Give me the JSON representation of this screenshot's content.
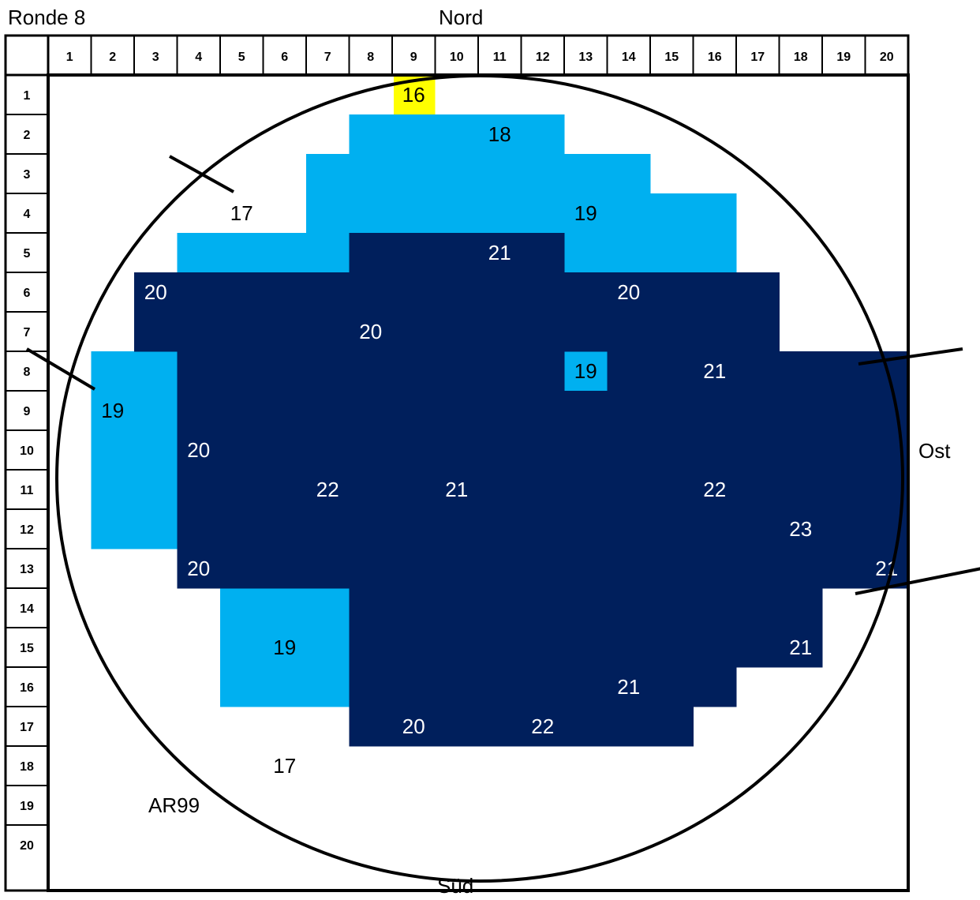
{
  "round_label": "Ronde 8",
  "compass": {
    "north": "Nord",
    "east": "Ost",
    "south": "Süd"
  },
  "marker": "AR99",
  "colors": {
    "dark": "#001f5c",
    "light": "#00b0f0",
    "highlight": "#ffff00",
    "marker": "#ff0000",
    "grid": "#000000"
  },
  "grid": {
    "columns": [
      "1",
      "2",
      "3",
      "4",
      "5",
      "6",
      "7",
      "8",
      "9",
      "10",
      "11",
      "12",
      "13",
      "14",
      "15",
      "16",
      "17",
      "18",
      "19",
      "20"
    ],
    "rows": [
      "1",
      "2",
      "3",
      "4",
      "5",
      "6",
      "7",
      "8",
      "9",
      "10",
      "11",
      "12",
      "13",
      "14",
      "15",
      "16",
      "17",
      "18",
      "19",
      "20"
    ]
  },
  "zones": {
    "light": [
      {
        "row": 2,
        "from": 8,
        "to": 12
      },
      {
        "row": 3,
        "from": 7,
        "to": 14
      },
      {
        "row": 4,
        "from": 7,
        "to": 16
      },
      {
        "row": 5,
        "from": 4,
        "to": 7
      },
      {
        "row": 5,
        "from": 13,
        "to": 16
      },
      {
        "row": 8,
        "from": 2,
        "to": 3
      },
      {
        "row": 8,
        "from": 13,
        "to": 13
      },
      {
        "row": 9,
        "from": 2,
        "to": 3
      },
      {
        "row": 10,
        "from": 2,
        "to": 3
      },
      {
        "row": 11,
        "from": 2,
        "to": 3
      },
      {
        "row": 12,
        "from": 2,
        "to": 3
      },
      {
        "row": 14,
        "from": 5,
        "to": 7
      },
      {
        "row": 15,
        "from": 5,
        "to": 7
      },
      {
        "row": 16,
        "from": 5,
        "to": 7
      }
    ],
    "dark": [
      {
        "row": 5,
        "from": 8,
        "to": 12
      },
      {
        "row": 6,
        "from": 3,
        "to": 17
      },
      {
        "row": 7,
        "from": 3,
        "to": 17
      },
      {
        "row": 8,
        "from": 4,
        "to": 12
      },
      {
        "row": 8,
        "from": 14,
        "to": 20
      },
      {
        "row": 9,
        "from": 4,
        "to": 20
      },
      {
        "row": 10,
        "from": 4,
        "to": 20
      },
      {
        "row": 11,
        "from": 4,
        "to": 20
      },
      {
        "row": 12,
        "from": 4,
        "to": 20
      },
      {
        "row": 13,
        "from": 4,
        "to": 20
      },
      {
        "row": 14,
        "from": 8,
        "to": 18
      },
      {
        "row": 15,
        "from": 8,
        "to": 18
      },
      {
        "row": 16,
        "from": 8,
        "to": 16
      },
      {
        "row": 17,
        "from": 8,
        "to": 15
      }
    ],
    "highlight": [
      {
        "row": 1,
        "from": 9,
        "to": 9
      }
    ]
  },
  "values": [
    {
      "row": 1,
      "col": 9,
      "text": "16",
      "tone": "dark-text"
    },
    {
      "row": 2,
      "col": 11,
      "text": "18",
      "tone": "dark-text"
    },
    {
      "row": 4,
      "col": 5,
      "text": "17",
      "tone": "dark-text"
    },
    {
      "row": 4,
      "col": 13,
      "text": "19",
      "tone": "dark-text"
    },
    {
      "row": 5,
      "col": 11,
      "text": "21",
      "tone": "light-text"
    },
    {
      "row": 6,
      "col": 3,
      "text": "20",
      "tone": "light-text"
    },
    {
      "row": 6,
      "col": 14,
      "text": "20",
      "tone": "light-text"
    },
    {
      "row": 7,
      "col": 8,
      "text": "20",
      "tone": "light-text"
    },
    {
      "row": 8,
      "col": 13,
      "text": "19",
      "tone": "dark-text"
    },
    {
      "row": 8,
      "col": 16,
      "text": "21",
      "tone": "light-text"
    },
    {
      "row": 9,
      "col": 2,
      "text": "19",
      "tone": "dark-text"
    },
    {
      "row": 10,
      "col": 4,
      "text": "20",
      "tone": "light-text"
    },
    {
      "row": 11,
      "col": 7,
      "text": "22",
      "tone": "light-text"
    },
    {
      "row": 11,
      "col": 10,
      "text": "21",
      "tone": "light-text"
    },
    {
      "row": 11,
      "col": 16,
      "text": "22",
      "tone": "light-text"
    },
    {
      "row": 12,
      "col": 18,
      "text": "23",
      "tone": "light-text"
    },
    {
      "row": 13,
      "col": 4,
      "text": "20",
      "tone": "light-text"
    },
    {
      "row": 13,
      "col": 20,
      "text": "21",
      "tone": "light-text"
    },
    {
      "row": 15,
      "col": 6,
      "text": "19",
      "tone": "dark-text"
    },
    {
      "row": 15,
      "col": 18,
      "text": "21",
      "tone": "light-text"
    },
    {
      "row": 16,
      "col": 14,
      "text": "21",
      "tone": "light-text"
    },
    {
      "row": 17,
      "col": 9,
      "text": "20",
      "tone": "light-text"
    },
    {
      "row": 17,
      "col": 12,
      "text": "22",
      "tone": "light-text"
    },
    {
      "row": 18,
      "col": 6,
      "text": "17",
      "tone": "dark-text"
    }
  ]
}
